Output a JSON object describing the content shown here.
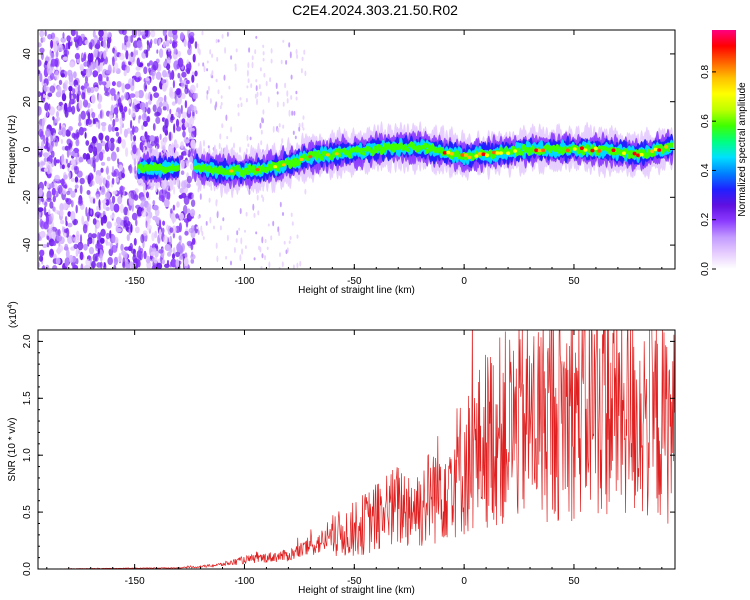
{
  "title": "C2E4.2024.303.21.50.R02",
  "chart_data": [
    {
      "type": "heatmap",
      "xlabel": "Height of straight line (km)",
      "ylabel": "Frequency (Hz)",
      "xlim": [
        -194,
        96
      ],
      "ylim": [
        -50,
        50
      ],
      "xticks": [
        -150,
        -100,
        -50,
        0,
        50
      ],
      "yticks": [
        -40,
        -20,
        0,
        20,
        40
      ],
      "colorbar": {
        "label": "Normalized spectral amplitude",
        "range": [
          0,
          0.97
        ],
        "ticks": [
          "0.0",
          "0.2",
          "0.4",
          "0.6",
          "0.8"
        ],
        "colors": [
          "#ffffff",
          "#e6ccff",
          "#c39bff",
          "#8c3cff",
          "#6010e0",
          "#2020ff",
          "#0080ff",
          "#00e0ff",
          "#00ff80",
          "#40ff00",
          "#c0ff00",
          "#ffff00",
          "#ffc000",
          "#ff6000",
          "#ff0000",
          "#ff0080"
        ]
      },
      "ridge": {
        "x": [
          -140,
          -122,
          -110,
          -100,
          -90,
          -80,
          -70,
          -60,
          -50,
          -40,
          -30,
          -20,
          -10,
          0,
          10,
          20,
          30,
          40,
          50,
          60,
          70,
          80,
          94
        ],
        "frequency": [
          -8,
          -7,
          -9,
          -9,
          -8,
          -6,
          -3,
          -2,
          -1,
          0,
          1,
          1,
          -1,
          -3,
          -2,
          -1,
          0,
          0,
          0,
          0,
          -1,
          -2,
          1
        ]
      },
      "noise_region_x": [
        -194,
        -122
      ]
    },
    {
      "type": "line",
      "xlabel": "Height of straight line (km)",
      "ylabel": "SNR (10 * v/v)",
      "y_multiplier": "(x10",
      "y_multiplier_exp": "4",
      "y_multiplier_close": ")",
      "xlim": [
        -194,
        96
      ],
      "ylim": [
        0,
        2.1
      ],
      "xticks": [
        -150,
        -100,
        -50,
        0,
        50
      ],
      "yticks": [
        "0.0",
        "0.5",
        "1.0",
        "1.5",
        "2.0"
      ],
      "series": [
        {
          "color": "#e02020",
          "x": [
            -194,
            -130,
            -120,
            -110,
            -100,
            -90,
            -80,
            -70,
            -60,
            -50,
            -40,
            -30,
            -20,
            -15,
            -10,
            -5,
            0,
            5,
            10,
            20,
            30,
            40,
            50,
            60,
            70,
            80,
            90,
            96
          ],
          "y": [
            0.0,
            0.01,
            0.02,
            0.04,
            0.08,
            0.1,
            0.12,
            0.2,
            0.28,
            0.35,
            0.45,
            0.55,
            0.55,
            0.65,
            0.75,
            0.85,
            0.9,
            1.0,
            1.15,
            1.25,
            1.3,
            1.35,
            1.4,
            1.45,
            1.4,
            1.35,
            1.3,
            1.25
          ]
        }
      ]
    }
  ]
}
